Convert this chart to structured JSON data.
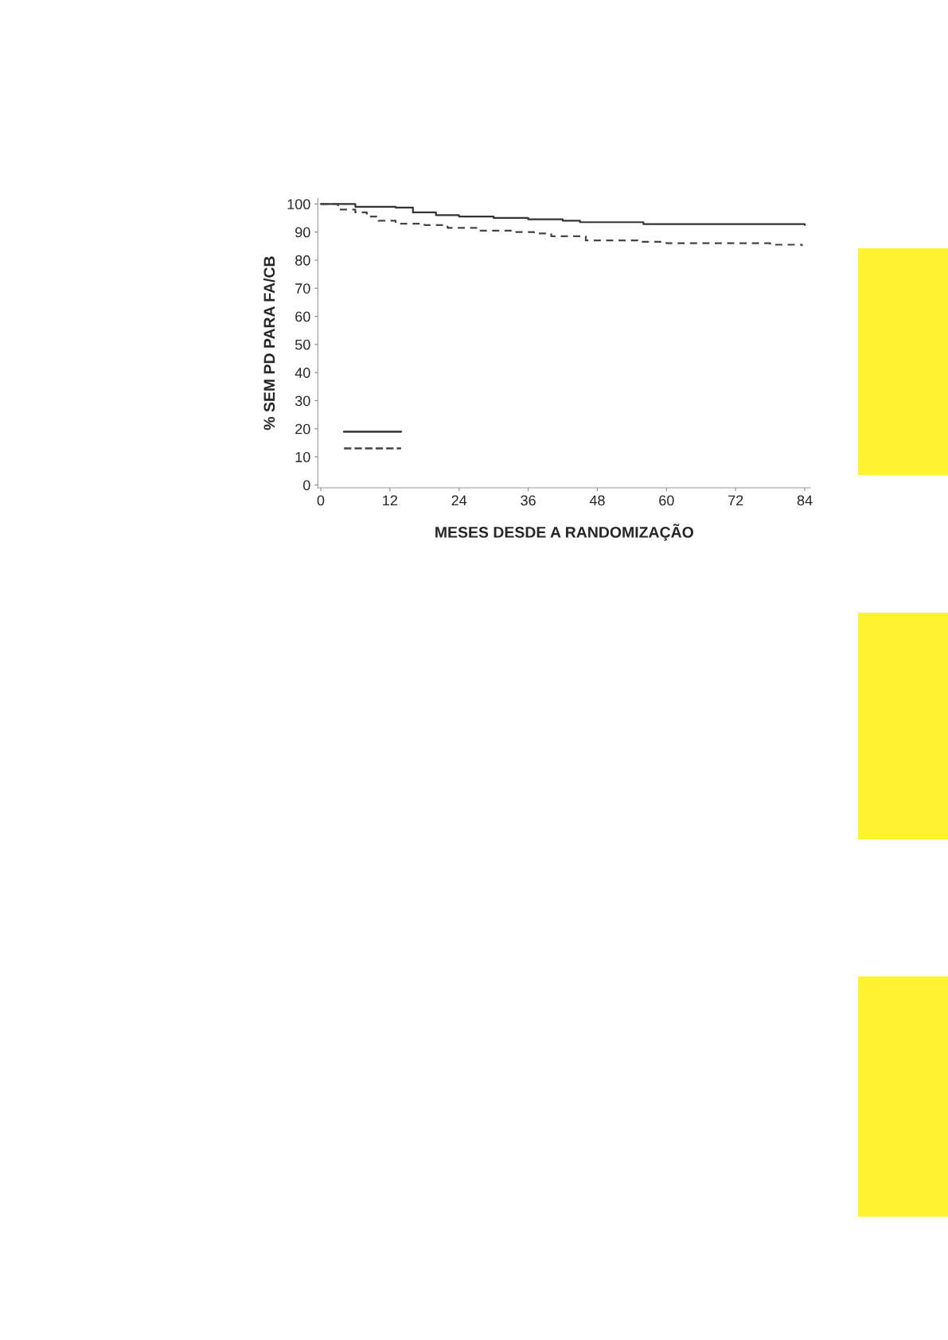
{
  "chart_data": {
    "type": "step",
    "xlabel": "MESES DESDE A RANDOMIZAÇÃO",
    "ylabel": "% SEM PD PARA FA/CB",
    "xlim": [
      -0.5,
      85
    ],
    "xticks": [
      0,
      12,
      24,
      36,
      48,
      60,
      72,
      84
    ],
    "ylim": [
      -1,
      102
    ],
    "yticks": [
      0,
      10,
      20,
      30,
      40,
      50,
      60,
      70,
      80,
      90,
      100
    ],
    "grid": false,
    "series": [
      {
        "color": "#333333",
        "line_style": "solid",
        "x": [
          0,
          6,
          13,
          16,
          20,
          24,
          30,
          36,
          42,
          45,
          56,
          84
        ],
        "values": [
          100,
          99,
          98.7,
          97,
          96,
          95.5,
          95,
          94.5,
          94,
          93.5,
          92.8,
          92.5
        ]
      },
      {
        "color": "#444444",
        "line_style": "dashed",
        "x": [
          0,
          3,
          6,
          8,
          10,
          13,
          18,
          22,
          27,
          33,
          37,
          40,
          46,
          55,
          60,
          78,
          83.5
        ],
        "values": [
          100,
          98,
          97,
          95.5,
          94,
          93,
          92.5,
          91.5,
          90.5,
          90,
          89.5,
          88.5,
          87,
          86.5,
          86,
          85.5,
          85
        ]
      }
    ]
  }
}
